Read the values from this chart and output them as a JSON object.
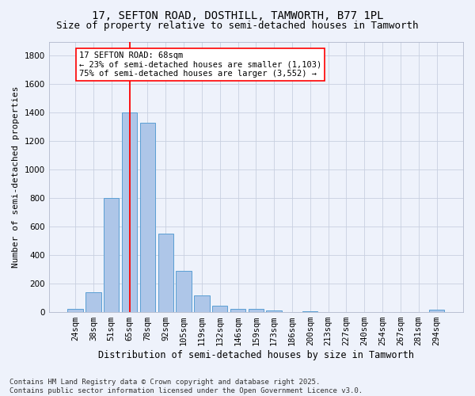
{
  "title1": "17, SEFTON ROAD, DOSTHILL, TAMWORTH, B77 1PL",
  "title2": "Size of property relative to semi-detached houses in Tamworth",
  "xlabel": "Distribution of semi-detached houses by size in Tamworth",
  "ylabel": "Number of semi-detached properties",
  "categories": [
    "24sqm",
    "38sqm",
    "51sqm",
    "65sqm",
    "78sqm",
    "92sqm",
    "105sqm",
    "119sqm",
    "132sqm",
    "146sqm",
    "159sqm",
    "173sqm",
    "186sqm",
    "200sqm",
    "213sqm",
    "227sqm",
    "240sqm",
    "254sqm",
    "267sqm",
    "281sqm",
    "294sqm"
  ],
  "values": [
    20,
    140,
    800,
    1400,
    1330,
    550,
    290,
    120,
    45,
    25,
    25,
    10,
    0,
    5,
    0,
    0,
    0,
    0,
    0,
    0,
    15
  ],
  "bar_color": "#aec6e8",
  "bar_edge_color": "#5a9fd4",
  "vline_x_index": 3,
  "vline_color": "red",
  "annotation_text": "17 SEFTON ROAD: 68sqm\n← 23% of semi-detached houses are smaller (1,103)\n75% of semi-detached houses are larger (3,552) →",
  "annotation_box_color": "white",
  "annotation_box_edge": "red",
  "background_color": "#eef2fb",
  "grid_color": "#c8d0e0",
  "ylim": [
    0,
    1900
  ],
  "yticks": [
    0,
    200,
    400,
    600,
    800,
    1000,
    1200,
    1400,
    1600,
    1800
  ],
  "footnote": "Contains HM Land Registry data © Crown copyright and database right 2025.\nContains public sector information licensed under the Open Government Licence v3.0.",
  "title1_fontsize": 10,
  "title2_fontsize": 9,
  "xlabel_fontsize": 8.5,
  "ylabel_fontsize": 8,
  "tick_fontsize": 7.5,
  "annot_fontsize": 7.5,
  "footnote_fontsize": 6.5
}
